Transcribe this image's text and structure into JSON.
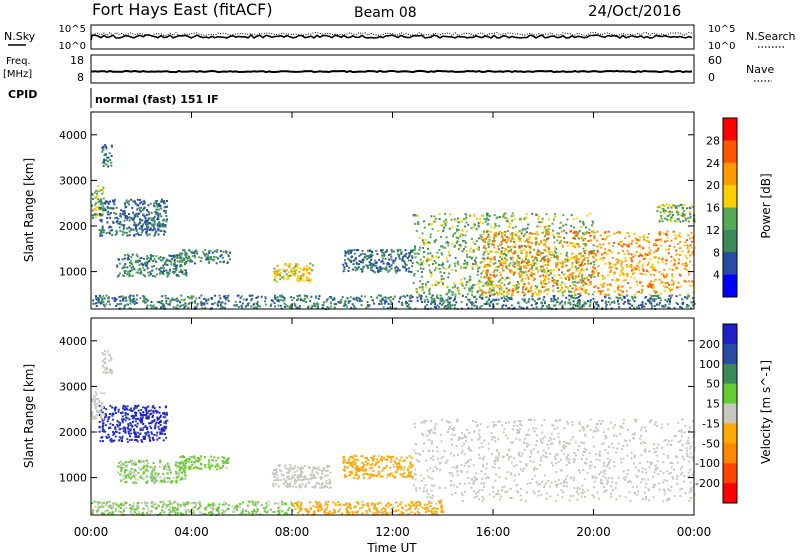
{
  "header": {
    "site": "Fort Hays East (fitACF)",
    "beam": "Beam 08",
    "date": "24/Oct/2016"
  },
  "top_panels": {
    "nsky_label": "N.Sky",
    "nsearch_label": "N.Search",
    "noise_ticks_left": [
      "10^5",
      "10^0"
    ],
    "noise_ticks_right": [
      "10^5",
      "10^0"
    ],
    "freq_label_1": "Freq.",
    "freq_label_2": "[MHz]",
    "freq_ticks": [
      "18",
      "8"
    ],
    "nave_label": "Nave",
    "nave_ticks": [
      "60",
      "0"
    ],
    "cpid_label": "CPID",
    "cpid_value": "normal (fast) 151 IF"
  },
  "colors": {
    "power_scale": [
      "#0000ff",
      "#2a4aa8",
      "#3c8a5a",
      "#55aa55",
      "#ffd000",
      "#ff9900",
      "#ff5500",
      "#ff0000"
    ],
    "velocity_scale": [
      "#2020c8",
      "#2a4aa8",
      "#3c8a5a",
      "#66cc33",
      "#c8c8c0",
      "#ffaa00",
      "#ff8800",
      "#ff4400",
      "#ff0000"
    ],
    "ground_scatter": "#c8c8c0"
  },
  "chart_data": [
    {
      "type": "heatmap",
      "name": "power",
      "ylabel": "Slant Range [km]",
      "xlabel": "",
      "x_ticks": [
        "00:00",
        "04:00",
        "08:00",
        "12:00",
        "16:00",
        "20:00",
        "00:00"
      ],
      "y_ticks": [
        "1000",
        "2000",
        "3000",
        "4000"
      ],
      "xlim_hours": [
        0,
        24
      ],
      "ylim_km": [
        180,
        4500
      ],
      "colorbar_label": "Power [dB]",
      "colorbar_ticks": [
        "4",
        "8",
        "12",
        "16",
        "20",
        "24",
        "28"
      ],
      "colorbar_range": [
        0,
        32
      ],
      "echo_regions": [
        {
          "t0": 0.0,
          "t1": 0.5,
          "r0": 2200,
          "r1": 2900,
          "value": 14
        },
        {
          "t0": 0.4,
          "t1": 0.8,
          "r0": 3300,
          "r1": 3800,
          "value": 8
        },
        {
          "t0": 0.3,
          "t1": 3.0,
          "r0": 1800,
          "r1": 2600,
          "value": 8
        },
        {
          "t0": 1.0,
          "t1": 3.8,
          "r0": 900,
          "r1": 1400,
          "value": 10
        },
        {
          "t0": 3.5,
          "t1": 5.5,
          "r0": 1200,
          "r1": 1500,
          "value": 10
        },
        {
          "t0": 7.2,
          "t1": 8.8,
          "r0": 800,
          "r1": 1200,
          "value": 18
        },
        {
          "t0": 10.0,
          "t1": 12.8,
          "r0": 1000,
          "r1": 1500,
          "value": 8
        },
        {
          "t0": 12.8,
          "t1": 20.0,
          "r0": 500,
          "r1": 2300,
          "value": 14
        },
        {
          "t0": 15.5,
          "t1": 24.0,
          "r0": 500,
          "r1": 1900,
          "value": 22
        },
        {
          "t0": 22.5,
          "t1": 24.0,
          "r0": 2100,
          "r1": 2500,
          "value": 14
        },
        {
          "t0": 0.0,
          "t1": 24.0,
          "r0": 200,
          "r1": 500,
          "value": 9
        }
      ]
    },
    {
      "type": "heatmap",
      "name": "velocity",
      "ylabel": "Slant Range [km]",
      "xlabel": "Time UT",
      "x_ticks": [
        "00:00",
        "04:00",
        "08:00",
        "12:00",
        "16:00",
        "20:00",
        "00:00"
      ],
      "y_ticks": [
        "1000",
        "2000",
        "3000",
        "4000"
      ],
      "xlim_hours": [
        0,
        24
      ],
      "ylim_km": [
        180,
        4500
      ],
      "colorbar_label": "Velocity [m s^-1]",
      "colorbar_ticks": [
        "200",
        "100",
        "50",
        "15",
        "-15",
        "-50",
        "-100",
        "-200"
      ],
      "colorbar_range": [
        -250,
        250
      ],
      "echo_regions": [
        {
          "t0": 0.3,
          "t1": 3.0,
          "r0": 1800,
          "r1": 2600,
          "value": 200
        },
        {
          "t0": 0.0,
          "t1": 0.5,
          "r0": 2300,
          "r1": 2900,
          "value": 0,
          "ground_scatter": true
        },
        {
          "t0": 0.4,
          "t1": 0.8,
          "r0": 3300,
          "r1": 3800,
          "value": 0,
          "ground_scatter": true
        },
        {
          "t0": 1.0,
          "t1": 3.8,
          "r0": 900,
          "r1": 1400,
          "value": 30
        },
        {
          "t0": 3.5,
          "t1": 5.5,
          "r0": 1200,
          "r1": 1500,
          "value": 40
        },
        {
          "t0": 7.2,
          "t1": 9.5,
          "r0": 800,
          "r1": 1300,
          "value": 0,
          "ground_scatter": true
        },
        {
          "t0": 10.0,
          "t1": 12.8,
          "r0": 1000,
          "r1": 1500,
          "value": -40
        },
        {
          "t0": 12.8,
          "t1": 24.0,
          "r0": 500,
          "r1": 2300,
          "value": 0,
          "ground_scatter": true
        },
        {
          "t0": 8.0,
          "t1": 14.0,
          "r0": 200,
          "r1": 500,
          "value": -40
        },
        {
          "t0": 0.0,
          "t1": 8.0,
          "r0": 200,
          "r1": 500,
          "value": 30
        }
      ]
    }
  ]
}
